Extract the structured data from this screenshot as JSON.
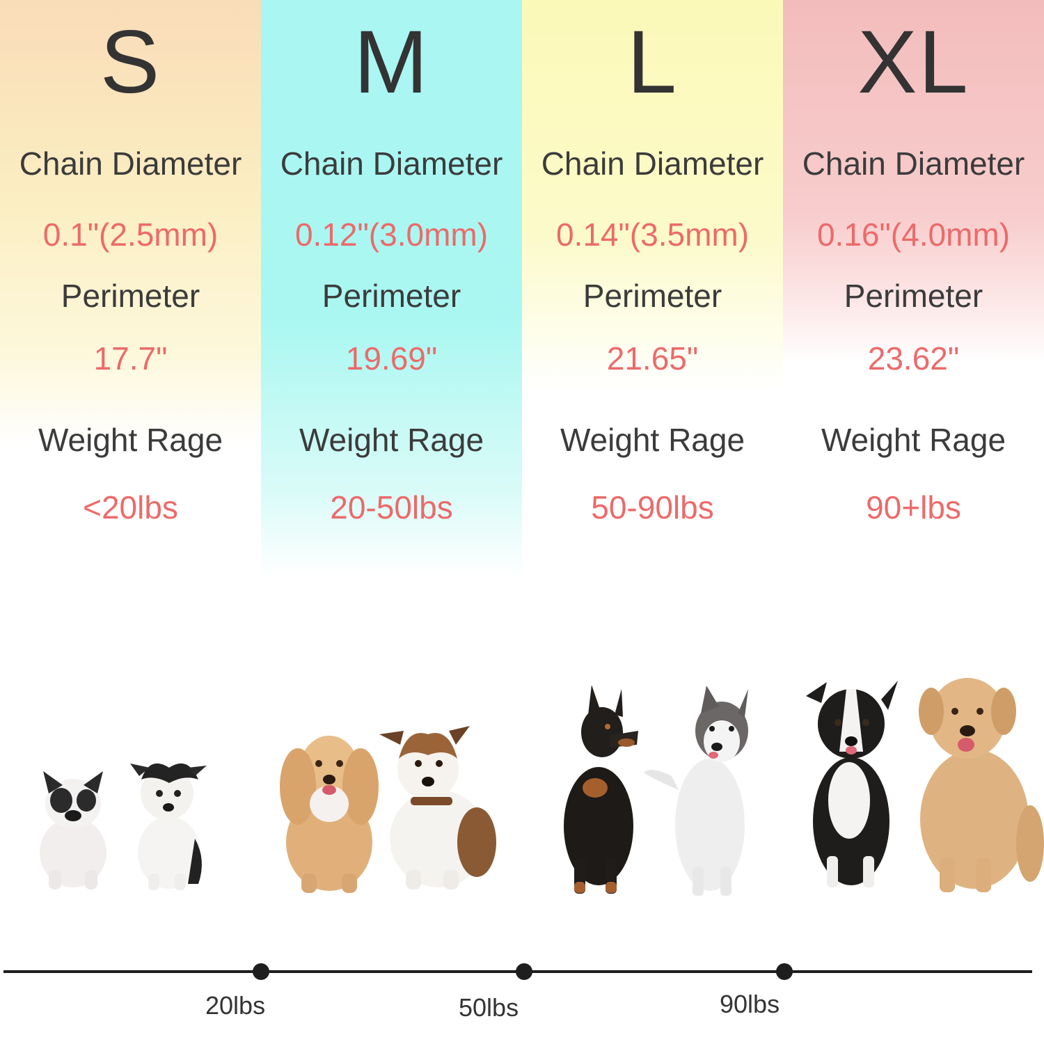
{
  "columns": [
    {
      "size": "S",
      "chain_label": "Chain Diameter",
      "chain_value": "0.1\"(2.5mm)",
      "perimeter_label": "Perimeter",
      "perimeter_value": "17.7\"",
      "weight_label": "Weight Rage",
      "weight_value": "<20lbs",
      "color": "#f9dcb8"
    },
    {
      "size": "M",
      "chain_label": "Chain Diameter",
      "chain_value": "0.12\"(3.0mm)",
      "perimeter_label": "Perimeter",
      "perimeter_value": "19.69\"",
      "weight_label": "Weight Rage",
      "weight_value": "20-50lbs",
      "color": "#a9f6f3"
    },
    {
      "size": "L",
      "chain_label": "Chain Diameter",
      "chain_value": "0.14\"(3.5mm)",
      "perimeter_label": "Perimeter",
      "perimeter_value": "21.65\"",
      "weight_label": "Weight Rage",
      "weight_value": "50-90lbs",
      "color": "#fbf9b8"
    },
    {
      "size": "XL",
      "chain_label": "Chain Diameter",
      "chain_value": "0.16\"(4.0mm)",
      "perimeter_label": "Perimeter",
      "perimeter_value": "23.62\"",
      "weight_label": "Weight Rage",
      "weight_value": "90+lbs",
      "color": "#f3bcbc"
    }
  ],
  "scale": {
    "ticks": [
      "20lbs",
      "50lbs",
      "90lbs"
    ]
  },
  "colors": {
    "label_text": "#3b3b3b",
    "value_text": "#ec6a6a",
    "line": "#1e1e1e"
  }
}
